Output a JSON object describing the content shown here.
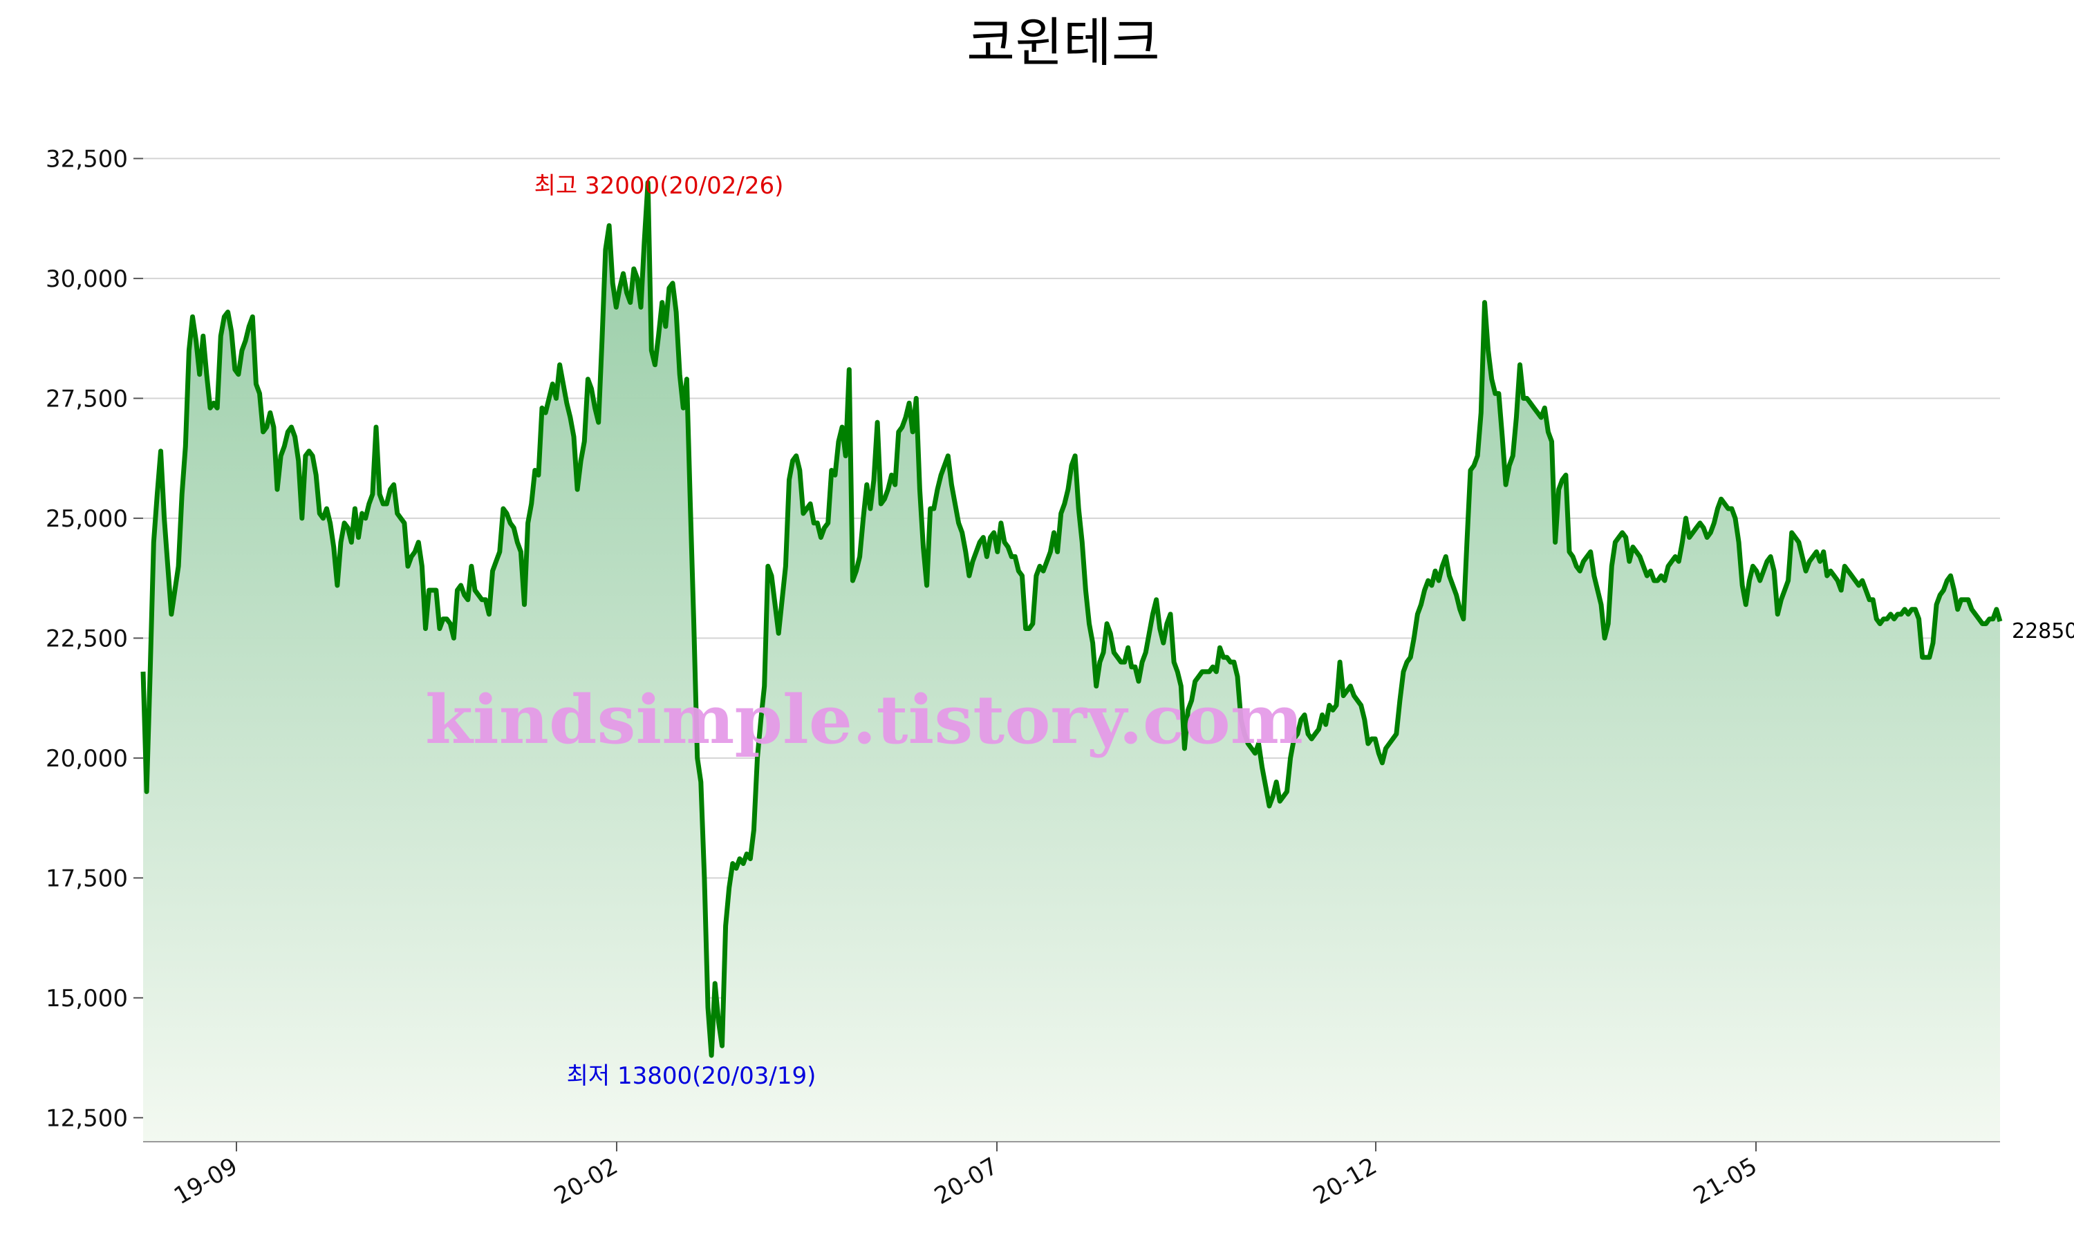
{
  "chart_data": {
    "type": "area",
    "title": "코윈테크",
    "xlabel": "",
    "ylabel": "",
    "ylim": [
      12000,
      33500
    ],
    "y_ticks": [
      12500,
      15000,
      17500,
      20000,
      22500,
      25000,
      27500,
      30000,
      32500
    ],
    "y_tick_labels": [
      "12,500",
      "15,000",
      "17,500",
      "20,000",
      "22,500",
      "25,000",
      "27,500",
      "30,000",
      "32,500"
    ],
    "x_tick_labels": [
      "19-09",
      "20-02",
      "20-07",
      "20-12",
      "21-05"
    ],
    "grid": true,
    "line_color": "#008000",
    "fill_color_top": "#90c9a0",
    "fill_color_bottom": "#f3f9f1",
    "annotations": {
      "high": "최고 32000(20/02/26)",
      "low": "최저 13800(20/03/19)",
      "last": "22850"
    },
    "watermark": "kindsimple.tistory.com",
    "series": [
      {
        "values": [
          21800,
          19300,
          21800,
          24500,
          25500,
          26400,
          25000,
          24000,
          23000,
          23500,
          24000,
          25500,
          26500,
          28500,
          29200,
          28700,
          28000,
          28800,
          28000,
          27300,
          27400,
          27300,
          28800,
          29200,
          29300,
          28900,
          28100,
          28000,
          28500,
          28700,
          29000,
          29200,
          27800,
          27600,
          26800,
          26900,
          27200,
          26900,
          25600,
          26300,
          26500,
          26800,
          26900,
          26700,
          26200,
          25000,
          26300,
          26400,
          26300,
          25900,
          25100,
          25000,
          25200,
          24900,
          24400,
          23600,
          24500,
          24900,
          24800,
          24500,
          25200,
          24600,
          25100,
          25000,
          25300,
          25500,
          26900,
          25500,
          25300,
          25300,
          25600,
          25700,
          25100,
          25000,
          24900,
          24000,
          24200,
          24300,
          24500,
          24000,
          22700,
          23500,
          23500,
          23500,
          22700,
          22900,
          22900,
          22800,
          22500,
          23500,
          23600,
          23400,
          23300,
          24000,
          23500,
          23400,
          23300,
          23300,
          23000,
          23900,
          24100,
          24300,
          25200,
          25100,
          24900,
          24800,
          24500,
          24300,
          23200,
          24900,
          25300,
          26000,
          25900,
          27300,
          27200,
          27500,
          27800,
          27500,
          28200,
          27800,
          27400,
          27100,
          26700,
          25600,
          26200,
          26600,
          27900,
          27700,
          27300,
          27000,
          28700,
          30600,
          31100,
          29900,
          29400,
          29800,
          30100,
          29700,
          29500,
          30200,
          30000,
          29400,
          30800,
          32000,
          28500,
          28200,
          28800,
          29500,
          29000,
          29800,
          29900,
          29300,
          28000,
          27300,
          27900,
          25300,
          22800,
          20000,
          19500,
          17500,
          14800,
          13800,
          15300,
          14500,
          14000,
          16500,
          17300,
          17800,
          17700,
          17900,
          17800,
          18000,
          17900,
          18500,
          20000,
          20800,
          21500,
          24000,
          23800,
          23200,
          22600,
          23300,
          24000,
          25800,
          26200,
          26300,
          26000,
          25100,
          25200,
          25300,
          24900,
          24900,
          24600,
          24800,
          24900,
          26000,
          25900,
          26600,
          26900,
          26300,
          28100,
          23700,
          23900,
          24200,
          25000,
          25700,
          25200,
          25800,
          27000,
          25300,
          25400,
          25600,
          25900,
          25700,
          26800,
          26900,
          27100,
          27400,
          26800,
          27500,
          25600,
          24400,
          23600,
          25200,
          25200,
          25600,
          25900,
          26100,
          26300,
          25700,
          25300,
          24900,
          24700,
          24300,
          23800,
          24100,
          24300,
          24500,
          24600,
          24200,
          24600,
          24700,
          24300,
          24900,
          24500,
          24400,
          24200,
          24200,
          23900,
          23800,
          22700,
          22700,
          22800,
          23800,
          24000,
          23900,
          24100,
          24300,
          24700,
          24300,
          25100,
          25300,
          25600,
          26100,
          26300,
          25200,
          24500,
          23500,
          22800,
          22400,
          21500,
          22000,
          22200,
          22800,
          22600,
          22200,
          22100,
          22000,
          22000,
          22300,
          21900,
          21900,
          21600,
          22000,
          22200,
          22600,
          23000,
          23300,
          22700,
          22400,
          22800,
          23000,
          22000,
          21800,
          21500,
          20200,
          21000,
          21200,
          21600,
          21700,
          21800,
          21800,
          21800,
          21900,
          21800,
          22300,
          22100,
          22100,
          22000,
          22000,
          21700,
          20800,
          20500,
          20300,
          20200,
          20100,
          20300,
          19800,
          19400,
          19000,
          19200,
          19500,
          19100,
          19200,
          19300,
          20000,
          20400,
          20500,
          20800,
          20900,
          20500,
          20400,
          20500,
          20600,
          20900,
          20700,
          21100,
          21000,
          21100,
          22000,
          21300,
          21400,
          21500,
          21300,
          21200,
          21100,
          20800,
          20300,
          20400,
          20400,
          20100,
          19900,
          20200,
          20300,
          20400,
          20500,
          21200,
          21800,
          22000,
          22100,
          22500,
          23000,
          23200,
          23500,
          23700,
          23600,
          23900,
          23700,
          24000,
          24200,
          23800,
          23600,
          23400,
          23100,
          22900,
          24500,
          26000,
          26100,
          26300,
          27200,
          29500,
          28500,
          27900,
          27600,
          27600,
          26700,
          25700,
          26100,
          26300,
          27100,
          28200,
          27500,
          27500,
          27400,
          27300,
          27200,
          27100,
          27300,
          26800,
          26600,
          24500,
          25600,
          25800,
          25900,
          24300,
          24200,
          24000,
          23900,
          24100,
          24200,
          24300,
          23800,
          23500,
          23200,
          22500,
          22800,
          24000,
          24500,
          24600,
          24700,
          24600,
          24100,
          24400,
          24300,
          24200,
          24000,
          23800,
          23900,
          23700,
          23700,
          23800,
          23700,
          24000,
          24100,
          24200,
          24100,
          24500,
          25000,
          24600,
          24700,
          24800,
          24900,
          24800,
          24600,
          24700,
          24900,
          25200,
          25400,
          25300,
          25200,
          25200,
          25000,
          24500,
          23600,
          23200,
          23700,
          24000,
          23900,
          23700,
          23900,
          24100,
          24200,
          23900,
          23000,
          23300,
          23500,
          23700,
          24700,
          24600,
          24500,
          24200,
          23900,
          24100,
          24200,
          24300,
          24100,
          24300,
          23800,
          23900,
          23800,
          23700,
          23500,
          24000,
          23900,
          23800,
          23700,
          23600,
          23700,
          23500,
          23300,
          23300,
          22900,
          22800,
          22900,
          22900,
          23000,
          22900,
          23000,
          23000,
          23100,
          23000,
          23100,
          23100,
          22900,
          22100,
          22100,
          22100,
          22400,
          23200,
          23400,
          23500,
          23700,
          23800,
          23500,
          23100,
          23300,
          23300,
          23300,
          23100,
          23000,
          22900,
          22800,
          22800,
          22900,
          22900,
          23100,
          22850
        ]
      }
    ]
  }
}
